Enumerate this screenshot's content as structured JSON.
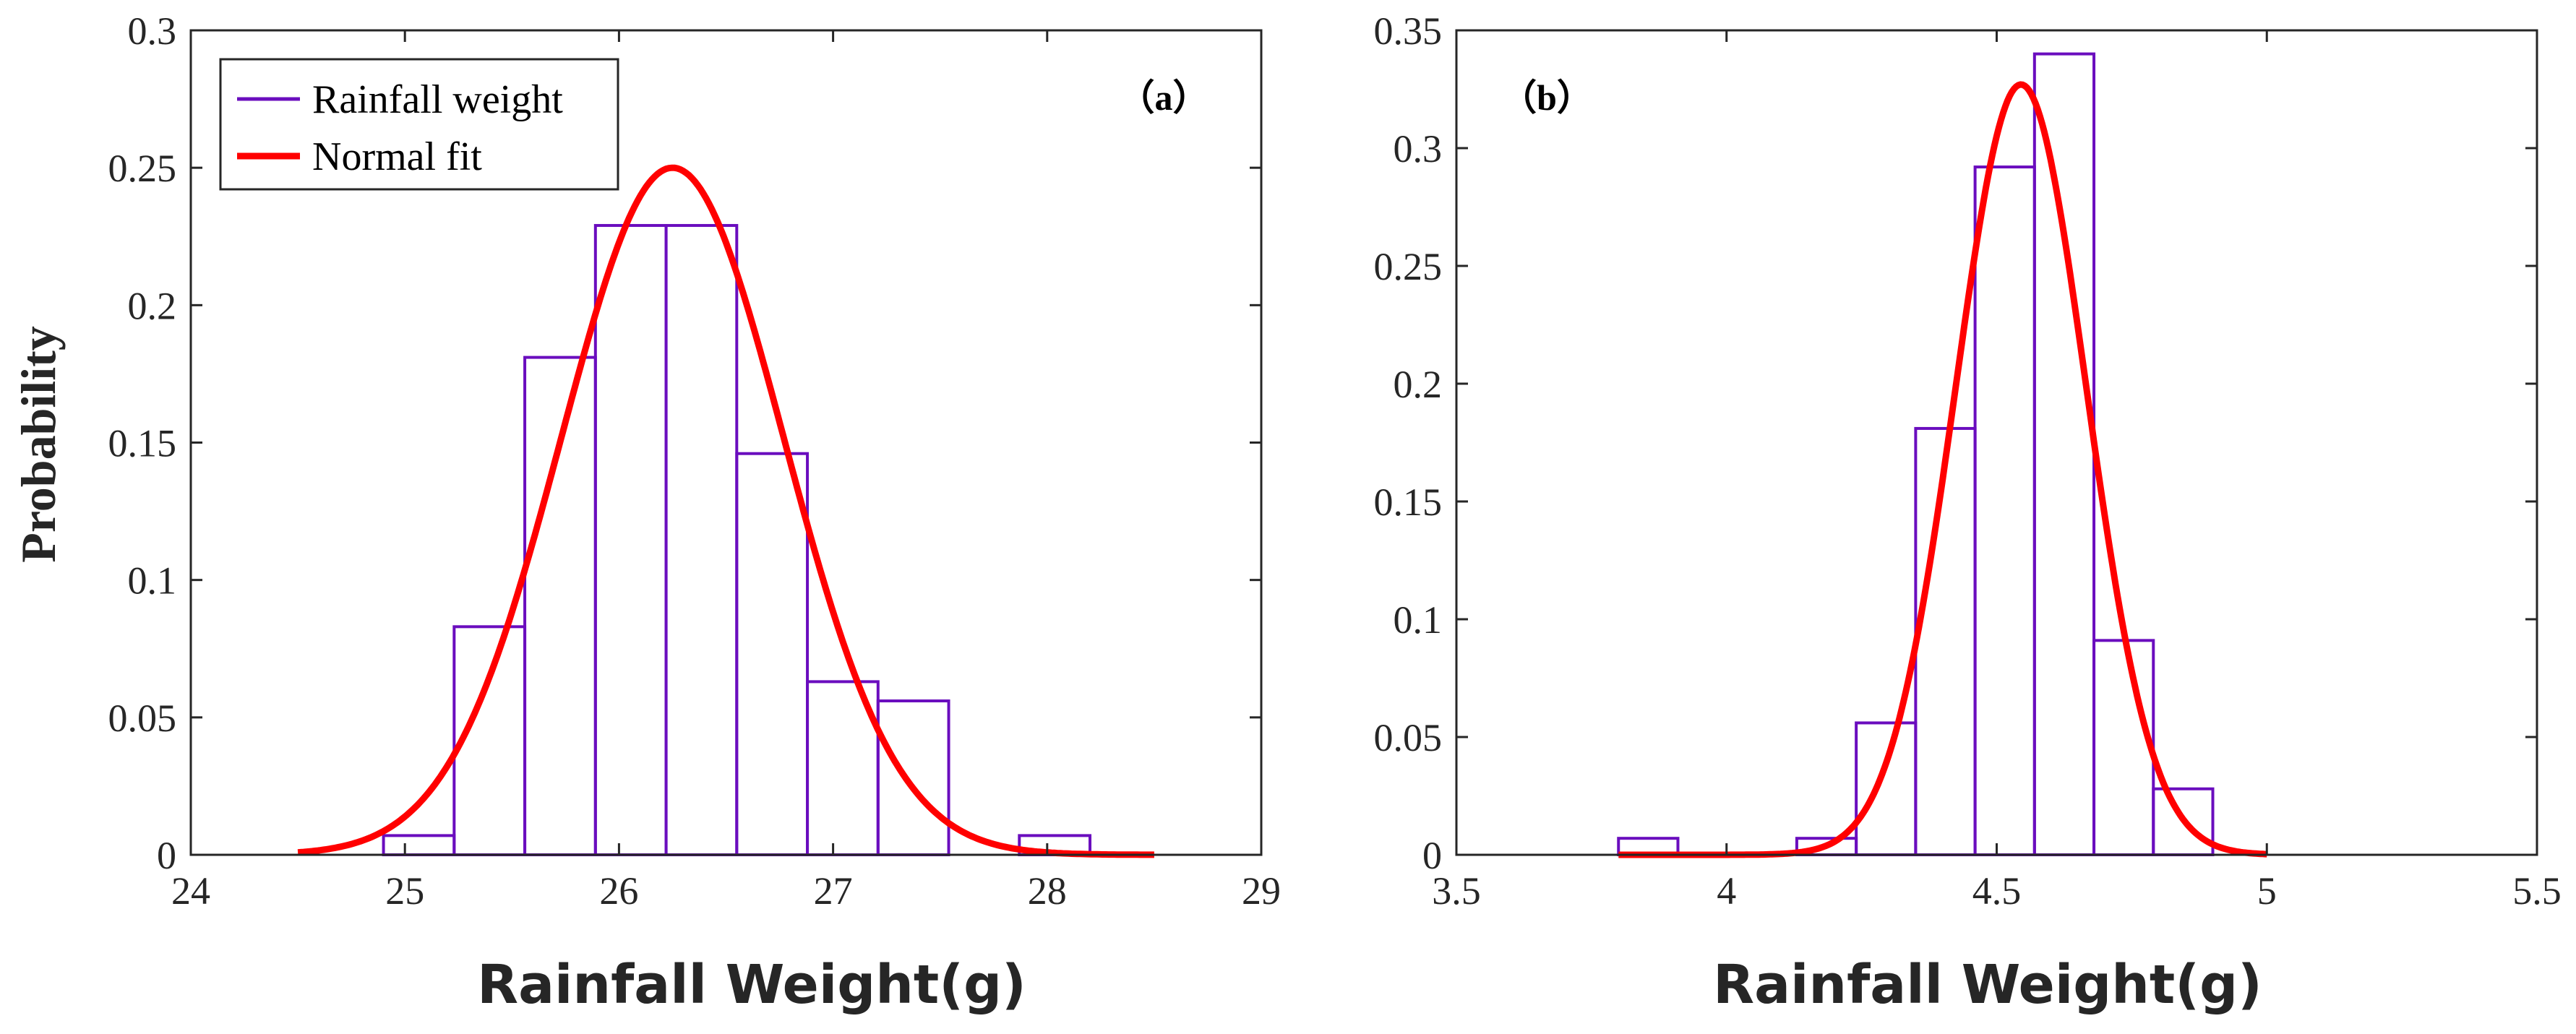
{
  "colors": {
    "histogram": "#6A0DBE",
    "fit": "#FF0000",
    "axis": "#262626",
    "background": "#FFFFFF"
  },
  "chart_data": [
    {
      "type": "bar",
      "panel_label": "（a）",
      "title": "",
      "xlabel": "Rainfall Weight(g)",
      "ylabel": "Probability",
      "xlim": [
        24,
        29
      ],
      "ylim": [
        0,
        0.3
      ],
      "xticks": [
        "24",
        "25",
        "26",
        "27",
        "28",
        "29"
      ],
      "yticks": [
        "0",
        "0.05",
        "0.1",
        "0.15",
        "0.2",
        "0.25",
        "0.3"
      ],
      "bin_edges": [
        24.9,
        25.23,
        25.56,
        25.89,
        26.22,
        26.55,
        26.88,
        27.21,
        27.54,
        27.87,
        28.2
      ],
      "series": [
        {
          "name": "Rainfall weight",
          "kind": "histogram",
          "values": [
            0.007,
            0.083,
            0.181,
            0.229,
            0.229,
            0.146,
            0.063,
            0.056,
            0.0,
            0.007
          ]
        },
        {
          "name": "Normal fit",
          "kind": "line",
          "mean": 26.25,
          "std": 0.52,
          "peak": 0.25,
          "x_range": [
            24.5,
            28.5
          ]
        }
      ],
      "legend": {
        "position": "top-left",
        "entries": [
          "Rainfall weight",
          "Normal fit"
        ]
      }
    },
    {
      "type": "bar",
      "panel_label": "（b）",
      "title": "",
      "xlabel": "Rainfall Weight(g)",
      "ylabel": "",
      "xlim": [
        3.5,
        5.5
      ],
      "ylim": [
        0,
        0.35
      ],
      "xticks": [
        "3.5",
        "4",
        "4.5",
        "5",
        "5.5"
      ],
      "yticks": [
        "0",
        "0.05",
        "0.1",
        "0.15",
        "0.2",
        "0.25",
        "0.3",
        "0.35"
      ],
      "bin_edges": [
        3.8,
        3.91,
        4.02,
        4.13,
        4.24,
        4.35,
        4.46,
        4.57,
        4.68,
        4.79,
        4.9
      ],
      "series": [
        {
          "name": "Rainfall weight",
          "kind": "histogram",
          "values": [
            0.007,
            0.0,
            0.0,
            0.007,
            0.056,
            0.181,
            0.292,
            0.34,
            0.091,
            0.028
          ]
        },
        {
          "name": "Normal fit",
          "kind": "line",
          "mean": 4.545,
          "std": 0.121,
          "peak": 0.327,
          "x_range": [
            3.8,
            5.0
          ]
        }
      ],
      "legend": null
    }
  ]
}
